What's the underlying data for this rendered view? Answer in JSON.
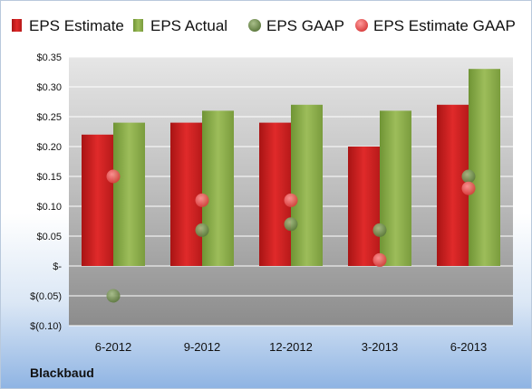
{
  "company": "Blackbaud",
  "colors": {
    "eps_estimate": "#cc1f1f",
    "eps_actual": "#86a845",
    "eps_gaap": "#7f9a5c",
    "eps_estimate_gaap": "#ee6a6a"
  },
  "chart_data": {
    "type": "bar",
    "categories": [
      "6-2012",
      "9-2012",
      "12-2012",
      "3-2013",
      "6-2013"
    ],
    "series": [
      {
        "name": "EPS Estimate",
        "kind": "bar",
        "values": [
          0.22,
          0.24,
          0.24,
          0.2,
          0.27
        ]
      },
      {
        "name": "EPS Actual",
        "kind": "bar",
        "values": [
          0.24,
          0.26,
          0.27,
          0.26,
          0.33
        ]
      },
      {
        "name": "EPS GAAP",
        "kind": "point",
        "values": [
          -0.05,
          0.06,
          0.07,
          0.06,
          0.15
        ]
      },
      {
        "name": "EPS Estimate GAAP",
        "kind": "point",
        "values": [
          0.15,
          0.11,
          0.11,
          0.01,
          0.13
        ]
      }
    ],
    "ylim": [
      -0.1,
      0.35
    ],
    "yticks": [
      0.35,
      0.3,
      0.25,
      0.2,
      0.15,
      0.1,
      0.05,
      0,
      -0.05,
      -0.1
    ],
    "ytick_labels": [
      "$0.35",
      "$0.30",
      "$0.25",
      "$0.20",
      "$0.15",
      "$0.10",
      "$0.05",
      "$-",
      "$(0.05)",
      "$(0.10)"
    ],
    "grid": true,
    "legend_position": "top"
  }
}
